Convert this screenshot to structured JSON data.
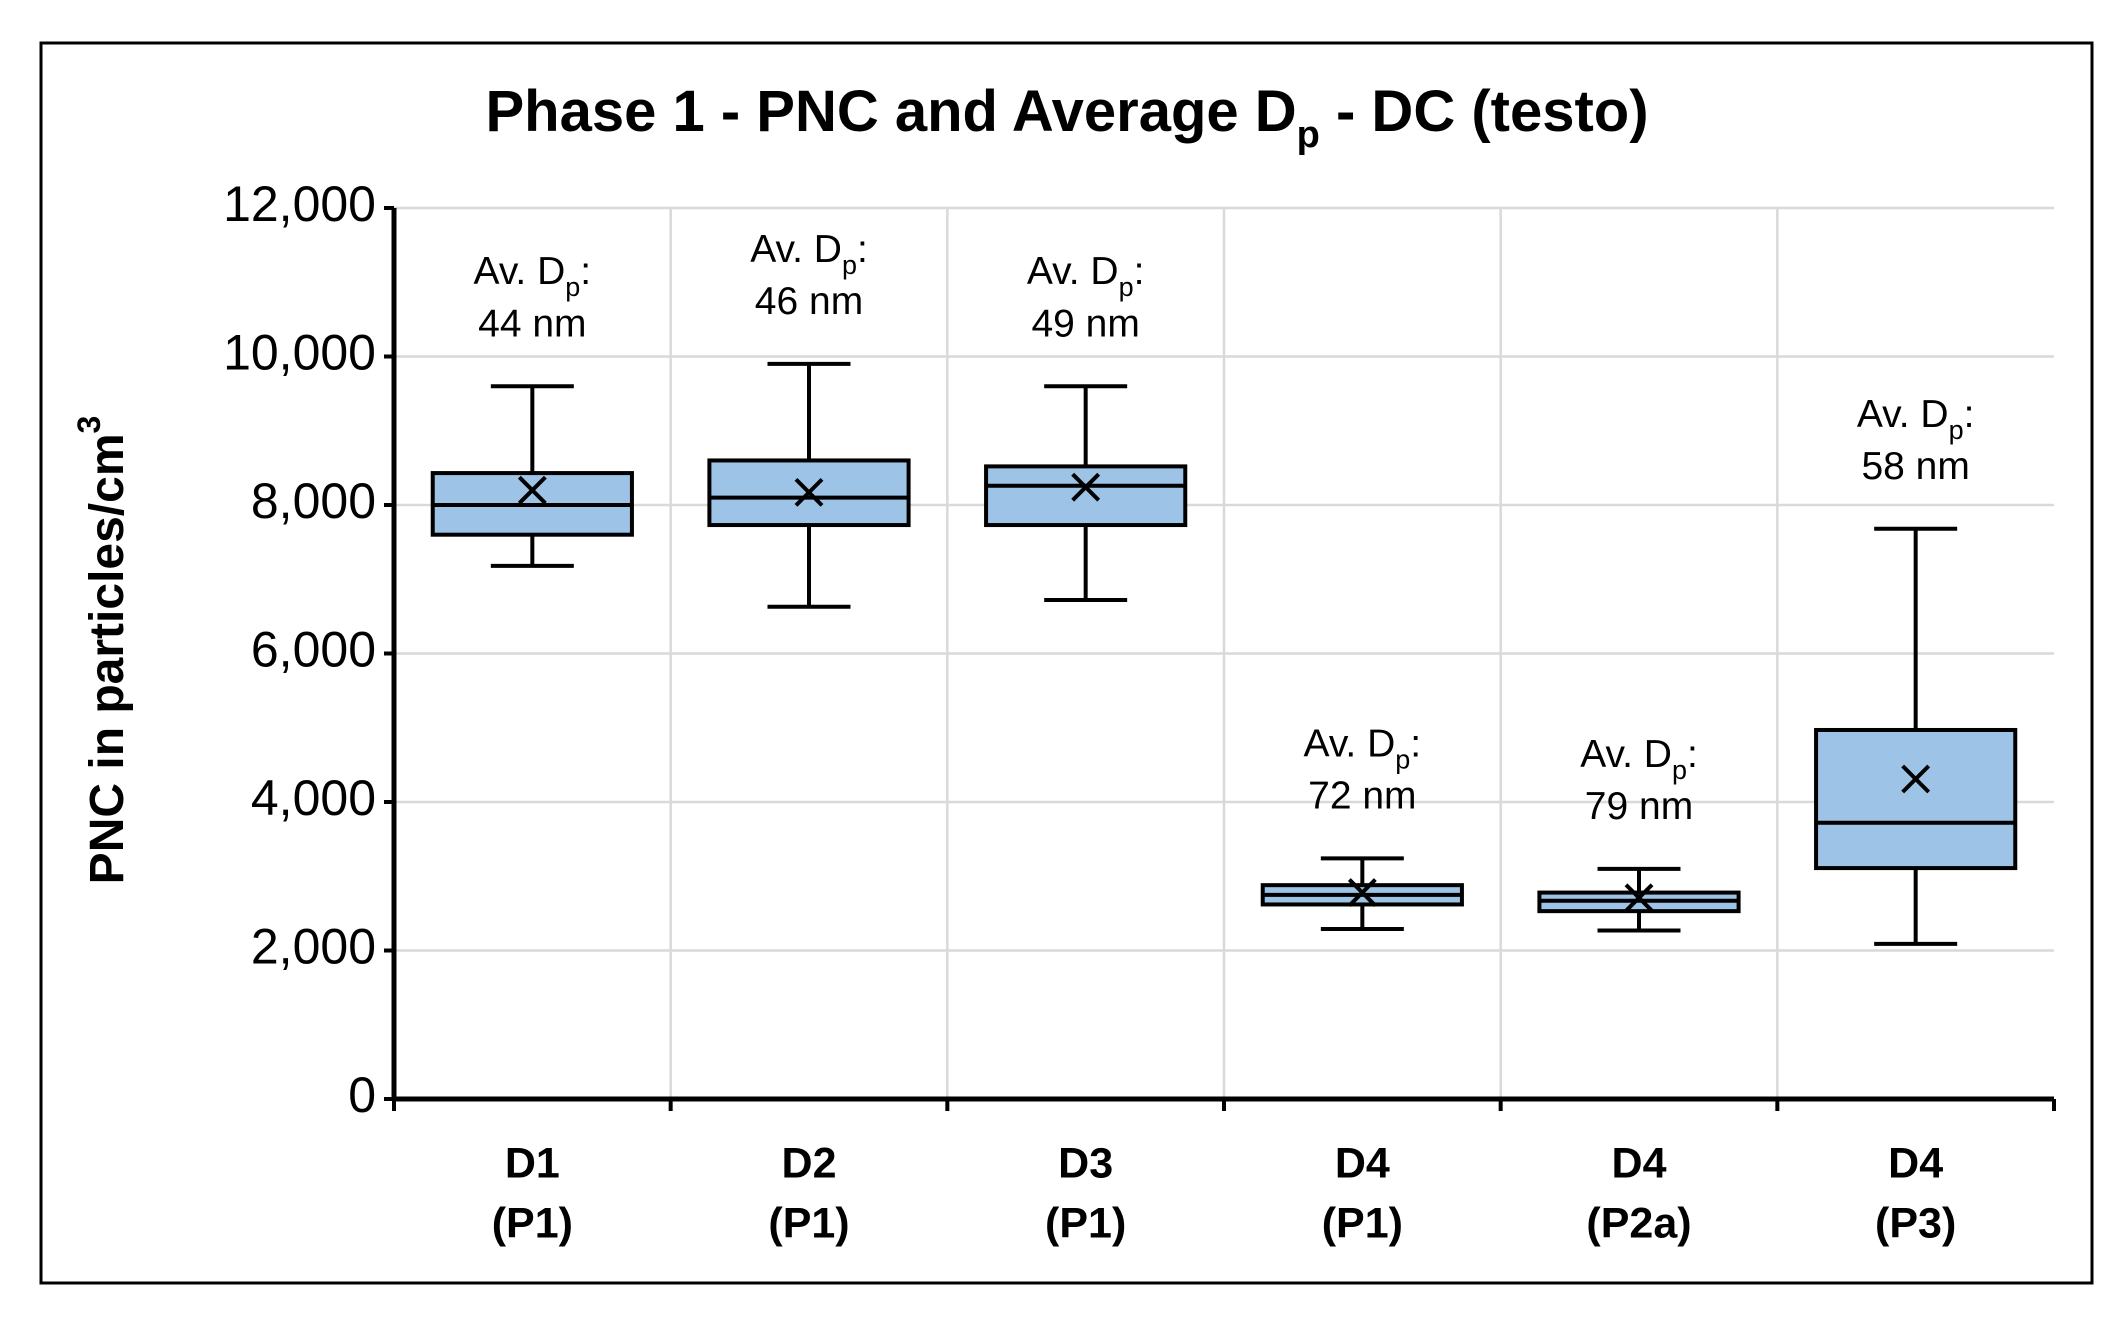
{
  "chart_data": {
    "type": "box",
    "title": [
      "Phase 1 - PNC and Average D",
      "p",
      " - DC (testo)"
    ],
    "y_label": [
      "PNC in particles/cm",
      "3"
    ],
    "categories": [
      [
        "D1",
        "(P1)"
      ],
      [
        "D2",
        "(P1)"
      ],
      [
        "D3",
        "(P1)"
      ],
      [
        "D4",
        "(P1)"
      ],
      [
        "D4",
        "(P2a)"
      ],
      [
        "D4",
        "(P3)"
      ]
    ],
    "boxes": [
      {
        "min": 7180,
        "q1": 7600,
        "median": 8000,
        "q3": 8430,
        "max": 9600,
        "mean": 8200
      },
      {
        "min": 6630,
        "q1": 7730,
        "median": 8100,
        "q3": 8600,
        "max": 9900,
        "mean": 8170
      },
      {
        "min": 6720,
        "q1": 7730,
        "median": 8260,
        "q3": 8520,
        "max": 9600,
        "mean": 8240
      },
      {
        "min": 2290,
        "q1": 2620,
        "median": 2750,
        "q3": 2880,
        "max": 3240,
        "mean": 2780
      },
      {
        "min": 2270,
        "q1": 2530,
        "median": 2670,
        "q3": 2780,
        "max": 3100,
        "mean": 2710
      },
      {
        "min": 2090,
        "q1": 3110,
        "median": 3720,
        "q3": 4970,
        "max": 7680,
        "mean": 4310
      }
    ],
    "annotations": [
      {
        "label": [
          "Av. D",
          "p",
          ":"
        ],
        "value": "44 nm"
      },
      {
        "label": [
          "Av. D",
          "p",
          ":"
        ],
        "value": "46 nm"
      },
      {
        "label": [
          "Av. D",
          "p",
          ":"
        ],
        "value": "49 nm"
      },
      {
        "label": [
          "Av. D",
          "p",
          ":"
        ],
        "value": "72 nm"
      },
      {
        "label": [
          "Av. D",
          "p",
          ":"
        ],
        "value": "79 nm"
      },
      {
        "label": [
          "Av. D",
          "p",
          ":"
        ],
        "value": "58 nm"
      }
    ],
    "color": "#9dc3e6",
    "ylim": [
      0,
      12000
    ],
    "yticks": [
      0,
      {
        "value": 2000,
        "label": "2,000"
      },
      {
        "value": 4000,
        "label": "4,000"
      },
      {
        "value": 6000,
        "label": "6,000"
      },
      {
        "value": 8000,
        "label": "8,000"
      },
      {
        "value": 10000,
        "label": "10,000"
      },
      {
        "value": 12000,
        "label": "12,000"
      }
    ],
    "grid": true
  }
}
